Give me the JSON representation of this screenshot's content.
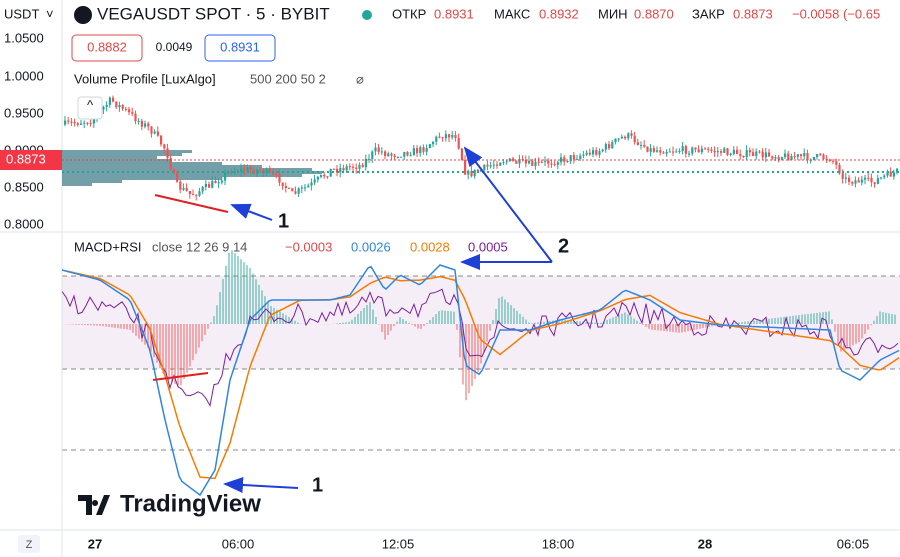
{
  "header": {
    "currency": "USDT",
    "symbol": "VEGAUSDT SPOT · 5 · BYBIT",
    "open_label": "ОТКР",
    "open": "0.8931",
    "high_label": "МАКС",
    "high": "0.8932",
    "low_label": "МИН",
    "low": "0.8870",
    "close_label": "ЗАКР",
    "close": "0.8873",
    "change": "−0.0058 (−0.65"
  },
  "trade_buttons": {
    "sell": "0.8882",
    "spread": "0.0049",
    "buy": "0.8931"
  },
  "indicator": {
    "name": "Volume Profile [LuxAlgo]",
    "params": "500 200 50 2"
  },
  "price_axis": [
    "1.0500",
    "1.0000",
    "0.9500",
    "0.9000",
    "0.8500",
    "0.8000"
  ],
  "last_price": "0.8873",
  "macd": {
    "name": "MACD+RSI",
    "params": "close 12 26 9 14",
    "histogram": "−0.0003",
    "macd": "0.0026",
    "signal": "0.0028",
    "rsi": "0.0005"
  },
  "annotations": [
    "1",
    "1",
    "2"
  ],
  "time_axis": [
    "27",
    "06:00",
    "12:05",
    "18:00",
    "28",
    "06:05"
  ],
  "logo": "TradingView",
  "corner": "Z"
}
